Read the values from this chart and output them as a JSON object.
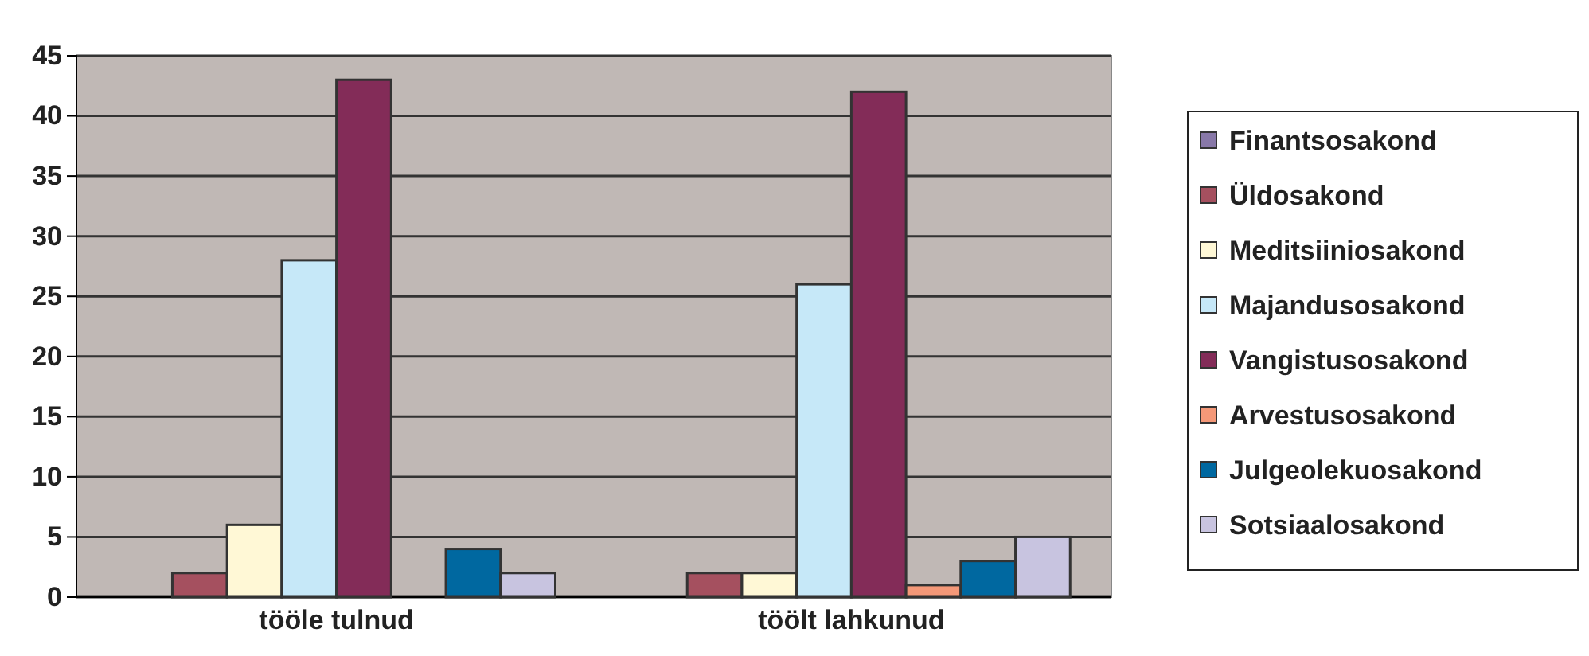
{
  "chart_data": {
    "type": "bar",
    "categories": [
      "tööle tulnud",
      "töölt lahkunud"
    ],
    "series": [
      {
        "name": "Finantsosakond",
        "color": "#8878a8",
        "values": [
          0,
          0
        ]
      },
      {
        "name": "Üldosakond",
        "color": "#a5505f",
        "values": [
          2,
          2
        ]
      },
      {
        "name": "Meditsiiniosakond",
        "color": "#fff8d6",
        "values": [
          6,
          2
        ]
      },
      {
        "name": "Majandusosakond",
        "color": "#c6e8f8",
        "values": [
          28,
          26
        ]
      },
      {
        "name": "Vangistusosakond",
        "color": "#832c58",
        "values": [
          43,
          42
        ]
      },
      {
        "name": "Arvestusosakond",
        "color": "#f49878",
        "values": [
          0,
          1
        ]
      },
      {
        "name": "Julgeolekuosakond",
        "color": "#0068a0",
        "values": [
          4,
          3
        ]
      },
      {
        "name": "Sotsiaalosakond",
        "color": "#c8c4e0",
        "values": [
          2,
          5
        ]
      }
    ],
    "ylim": [
      0,
      45
    ],
    "yticks": [
      0,
      5,
      10,
      15,
      20,
      25,
      30,
      35,
      40,
      45
    ],
    "grid": "y",
    "legend": "right"
  }
}
